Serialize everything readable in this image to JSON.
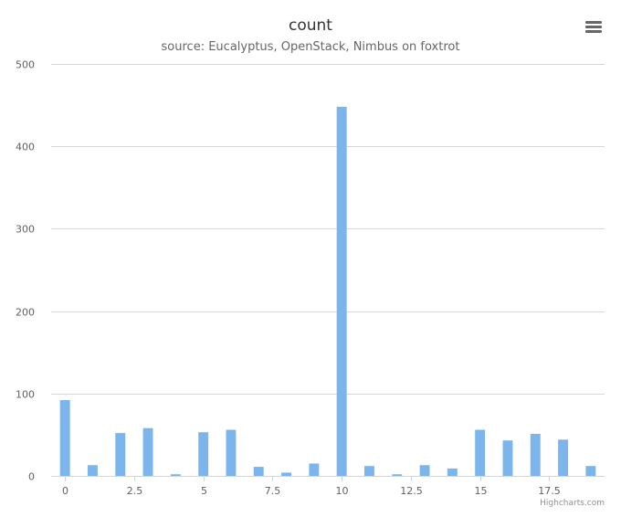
{
  "chart_data": {
    "type": "bar",
    "title": "count",
    "subtitle": "source: Eucalyptus, OpenStack, Nimbus on foxtrot",
    "x": [
      0,
      1,
      2,
      3,
      4,
      5,
      6,
      7,
      8,
      9,
      10,
      11,
      12,
      13,
      14,
      15,
      16,
      17,
      18,
      19
    ],
    "values": [
      92,
      13,
      52,
      58,
      2,
      53,
      56,
      11,
      4,
      15,
      448,
      12,
      2,
      13,
      9,
      56,
      43,
      51,
      44,
      12
    ],
    "xlim": [
      -0.5,
      19.5
    ],
    "ylim": [
      0,
      500
    ],
    "x_ticks": [
      "0",
      "2.5",
      "5",
      "7.5",
      "10",
      "12.5",
      "15",
      "17.5"
    ],
    "x_tick_values": [
      0,
      2.5,
      5,
      7.5,
      10,
      12.5,
      15,
      17.5
    ],
    "y_ticks": [
      "0",
      "100",
      "200",
      "300",
      "400",
      "500"
    ],
    "y_tick_values": [
      0,
      100,
      200,
      300,
      400,
      500
    ],
    "grid": "horizontal",
    "series_color": "#7cb5ec"
  },
  "credits": "Highcharts.com",
  "menu_icon": "hamburger-menu-icon"
}
